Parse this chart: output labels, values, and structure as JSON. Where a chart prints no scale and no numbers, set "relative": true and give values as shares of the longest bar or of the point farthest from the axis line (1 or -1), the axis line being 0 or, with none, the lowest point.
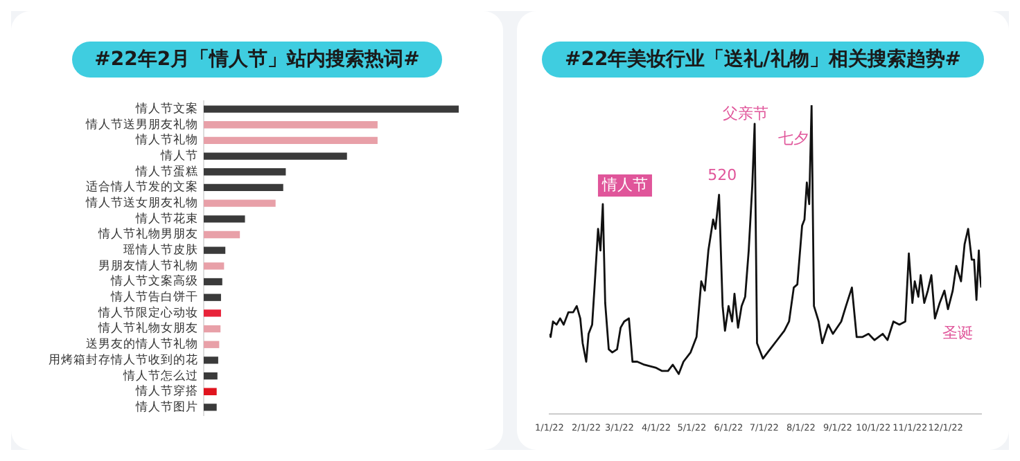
{
  "chart_data": [
    {
      "type": "bar",
      "title": "#22年2月「情人节」站内搜索热词#",
      "orientation": "horizontal",
      "relative": true,
      "categories": [
        "情人节文案",
        "情人节送男朋友礼物",
        "情人节礼物",
        "情人节",
        "情人节蛋糕",
        "适合情人节发的文案",
        "情人节送女朋友礼物",
        "情人节花束",
        "情人节礼物男朋友",
        "瑶情人节皮肤",
        "男朋友情人节礼物",
        "情人节文案高级",
        "情人节告白饼干",
        "情人节限定心动妆",
        "情人节礼物女朋友",
        "送男友的情人节礼物",
        "用烤箱封存情人节收到的花",
        "情人节怎么过",
        "情人节穿搭",
        "情人节图片"
      ],
      "values": [
        1,
        0.68,
        0.68,
        0.56,
        0.32,
        0.31,
        0.28,
        0.16,
        0.14,
        0.083,
        0.078,
        0.071,
        0.066,
        0.066,
        0.064,
        0.059,
        0.055,
        0.052,
        0.049,
        0.049
      ],
      "colors": [
        "#3a3a3a",
        "#e8a0a8",
        "#e8a0a8",
        "#3a3a3a",
        "#3a3a3a",
        "#3a3a3a",
        "#e8a0a8",
        "#3a3a3a",
        "#e8a0a8",
        "#3a3a3a",
        "#e8a0a8",
        "#3a3a3a",
        "#3a3a3a",
        "#e8233a",
        "#e8a0a8",
        "#e8a0a8",
        "#3a3a3a",
        "#3a3a3a",
        "#e0141e",
        "#3a3a3a"
      ]
    },
    {
      "type": "line",
      "title": "#22年美妆行业「送礼/礼物」相关搜索趋势#",
      "relative": true,
      "marker": "none",
      "color": "#111111",
      "x": [
        "2022-01-01",
        "2022-01-02",
        "2022-01-04",
        "2022-01-07",
        "2022-01-10",
        "2022-01-13",
        "2022-01-17",
        "2022-01-21",
        "2022-01-24",
        "2022-01-27",
        "2022-01-29",
        "2022-02-01",
        "2022-02-03",
        "2022-02-06",
        "2022-02-08",
        "2022-02-11",
        "2022-02-13",
        "2022-02-15",
        "2022-02-17",
        "2022-02-20",
        "2022-02-23",
        "2022-02-27",
        "2022-03-02",
        "2022-03-05",
        "2022-03-09",
        "2022-03-12",
        "2022-03-16",
        "2022-03-22",
        "2022-04-01",
        "2022-04-06",
        "2022-04-11",
        "2022-04-15",
        "2022-04-20",
        "2022-04-24",
        "2022-04-30",
        "2022-05-05",
        "2022-05-09",
        "2022-05-12",
        "2022-05-15",
        "2022-05-19",
        "2022-05-21",
        "2022-05-24",
        "2022-05-27",
        "2022-05-29",
        "2022-06-01",
        "2022-06-04",
        "2022-06-06",
        "2022-06-09",
        "2022-06-12",
        "2022-06-15",
        "2022-06-18",
        "2022-06-21",
        "2022-06-23",
        "2022-06-25",
        "2022-06-30",
        "2022-07-06",
        "2022-07-12",
        "2022-07-18",
        "2022-07-22",
        "2022-07-26",
        "2022-07-29",
        "2022-08-02",
        "2022-08-04",
        "2022-08-06",
        "2022-08-08",
        "2022-08-10",
        "2022-08-12",
        "2022-08-16",
        "2022-08-19",
        "2022-08-24",
        "2022-08-28",
        "2022-09-04",
        "2022-09-08",
        "2022-09-13",
        "2022-09-17",
        "2022-09-22",
        "2022-09-27",
        "2022-10-02",
        "2022-10-09",
        "2022-10-13",
        "2022-10-18",
        "2022-10-23",
        "2022-10-28",
        "2022-10-31",
        "2022-11-03",
        "2022-11-05",
        "2022-11-08",
        "2022-11-10",
        "2022-11-13",
        "2022-11-16",
        "2022-11-19",
        "2022-11-22",
        "2022-11-26",
        "2022-11-30",
        "2022-12-03",
        "2022-12-07",
        "2022-12-10",
        "2022-12-14",
        "2022-12-17",
        "2022-12-20",
        "2022-12-23",
        "2022-12-25",
        "2022-12-27",
        "2022-12-29",
        "2022-12-30",
        "2022-12-31"
      ],
      "values": [
        0.26,
        0.25,
        0.3,
        0.29,
        0.31,
        0.29,
        0.33,
        0.33,
        0.35,
        0.31,
        0.23,
        0.17,
        0.26,
        0.29,
        0.41,
        0.6,
        0.53,
        0.68,
        0.36,
        0.21,
        0.2,
        0.21,
        0.28,
        0.3,
        0.31,
        0.17,
        0.17,
        0.16,
        0.15,
        0.14,
        0.14,
        0.16,
        0.13,
        0.17,
        0.2,
        0.25,
        0.43,
        0.4,
        0.53,
        0.63,
        0.6,
        0.71,
        0.35,
        0.27,
        0.35,
        0.3,
        0.39,
        0.28,
        0.35,
        0.38,
        0.53,
        0.74,
        0.94,
        0.23,
        0.18,
        0.21,
        0.24,
        0.27,
        0.3,
        0.41,
        0.42,
        0.61,
        0.63,
        0.75,
        0.68,
        1,
        0.35,
        0.3,
        0.23,
        0.29,
        0.26,
        0.3,
        0.35,
        0.41,
        0.25,
        0.25,
        0.26,
        0.24,
        0.26,
        0.24,
        0.3,
        0.29,
        0.3,
        0.52,
        0.36,
        0.43,
        0.38,
        0.45,
        0.36,
        0.4,
        0.45,
        0.31,
        0.36,
        0.4,
        0.34,
        0.4,
        0.48,
        0.43,
        0.55,
        0.6,
        0.5,
        0.5,
        0.37,
        0.53,
        0.45,
        0.41
      ],
      "xlim": [
        "2022-01-01",
        "2022-12-31"
      ],
      "xticks": [
        {
          "value": "2022-01-01",
          "label": "1/1/22"
        },
        {
          "value": "2022-02-01",
          "label": "2/1/22"
        },
        {
          "value": "2022-03-01",
          "label": "3/1/22"
        },
        {
          "value": "2022-04-01",
          "label": "4/1/22"
        },
        {
          "value": "2022-05-01",
          "label": "5/1/22"
        },
        {
          "value": "2022-06-01",
          "label": "6/1/22"
        },
        {
          "value": "2022-07-01",
          "label": "7/1/22"
        },
        {
          "value": "2022-08-01",
          "label": "8/1/22"
        },
        {
          "value": "2022-09-01",
          "label": "9/1/22"
        },
        {
          "value": "2022-10-01",
          "label": "10/1/22"
        },
        {
          "value": "2022-11-01",
          "label": "11/1/22"
        },
        {
          "value": "2022-12-01",
          "label": "12/1/22"
        }
      ],
      "annotations": [
        "情人节",
        "520",
        "父亲节",
        "七夕",
        "圣诞"
      ]
    }
  ]
}
